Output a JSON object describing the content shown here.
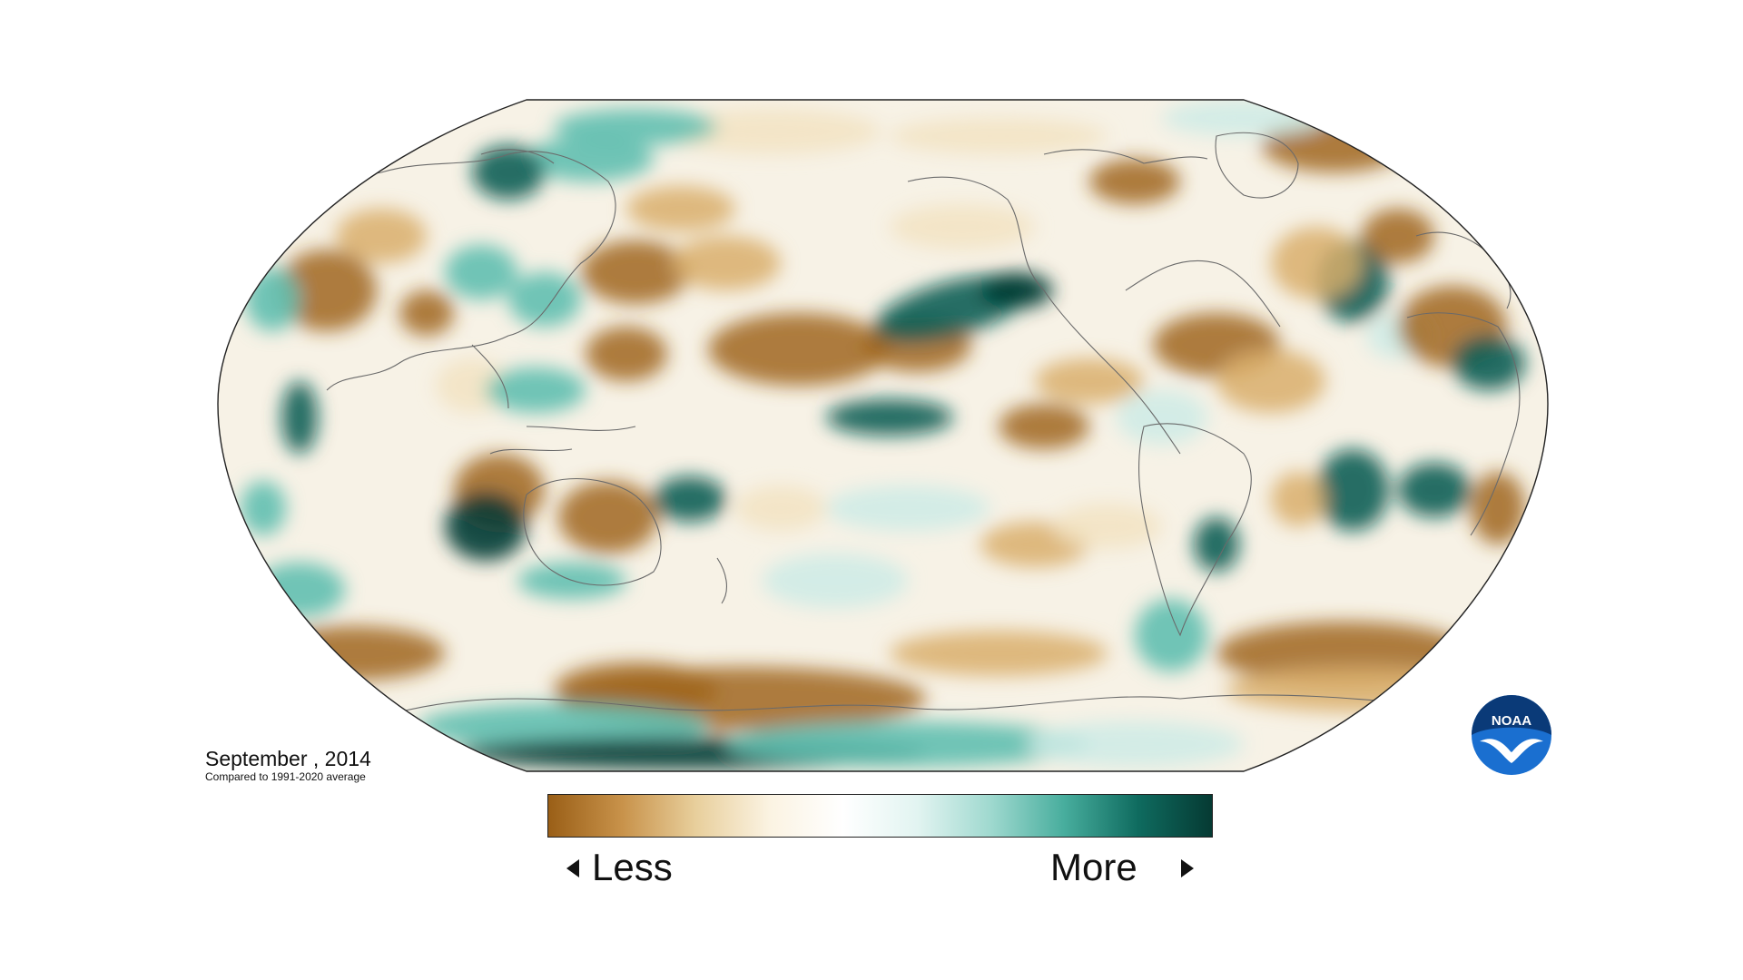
{
  "map": {
    "title_date": "September , 2014",
    "baseline_note": "Compared to 1991-2020 average",
    "projection": "Robinson (Pacific-centered)",
    "variable": "precipitation anomaly",
    "colors": {
      "less_dark": "#a0661c",
      "less_mid": "#d9ae6b",
      "less_light": "#f2e3c2",
      "neutral": "#ffffff",
      "more_light": "#cdebe6",
      "more_mid": "#5fbfb0",
      "more_dark": "#0a5e55",
      "more_darkest": "#053a33",
      "coastline": "#555555"
    },
    "anomalies": [
      {
        "region": "North Pacific (Gulf of Alaska)",
        "sign": "more",
        "strength": 0.9
      },
      {
        "region": "Central North Pacific",
        "sign": "less",
        "strength": 0.9
      },
      {
        "region": "Western Australia / Indian Ocean",
        "sign": "more",
        "strength": 1.0
      },
      {
        "region": "Northern Australia",
        "sign": "less",
        "strength": 0.9
      },
      {
        "region": "Southern Ocean (south of Australia)",
        "sign": "less",
        "strength": 0.9
      },
      {
        "region": "Antarctic coast (Ross Sea)",
        "sign": "more",
        "strength": 1.0
      },
      {
        "region": "South Atlantic",
        "sign": "less",
        "strength": 0.6
      },
      {
        "region": "Western Europe",
        "sign": "less",
        "strength": 0.8
      },
      {
        "region": "North Atlantic",
        "sign": "more",
        "strength": 0.9
      },
      {
        "region": "Greenland / Arctic Canada",
        "sign": "less",
        "strength": 0.6
      },
      {
        "region": "Central Africa",
        "sign": "more",
        "strength": 0.8
      },
      {
        "region": "Central Asia",
        "sign": "less",
        "strength": 0.7
      }
    ]
  },
  "legend": {
    "less_label": "Less",
    "more_label": "More",
    "gradient": [
      "#9a5f17",
      "#c8924a",
      "#e8cf9c",
      "#fbf3e2",
      "#ffffff",
      "#e2f4f1",
      "#9fd9cf",
      "#47ad9d",
      "#0f6b5f",
      "#053a33"
    ]
  },
  "logo": {
    "text": "NOAA",
    "colors": {
      "outer": "#1a5fb4",
      "inner": "#0a3a78",
      "light": "#2a8ae0"
    }
  }
}
